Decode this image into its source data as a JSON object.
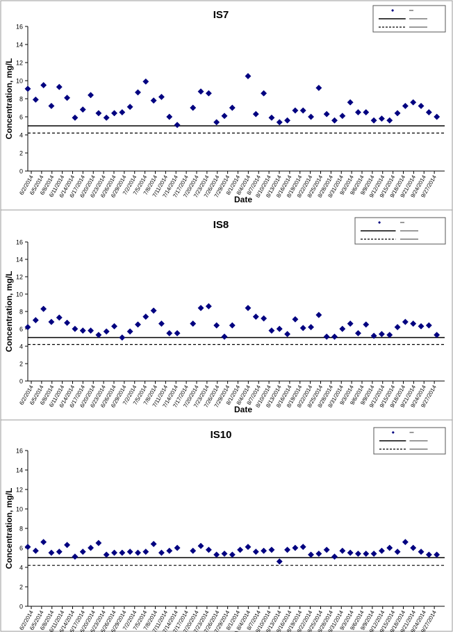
{
  "chart_data": [
    {
      "type": "scatter",
      "title": "IS7",
      "xlabel": "Date",
      "ylabel": "Concentration, mg/L",
      "ylim": [
        0,
        16
      ],
      "yticks": [
        0,
        2,
        4,
        6,
        8,
        10,
        12,
        14,
        16
      ],
      "grid": false,
      "legend": "top-right",
      "legend_entries": [
        "",
        "",
        ""
      ],
      "x_tick_labels": [
        "6/2/2014",
        "6/5/2014",
        "6/8/2014",
        "6/11/2014",
        "6/14/2014",
        "6/17/2014",
        "6/20/2014",
        "6/23/2014",
        "6/26/2014",
        "6/29/2014",
        "7/2/2014",
        "7/5/2014",
        "7/8/2014",
        "7/11/2014",
        "7/14/2014",
        "7/17/2014",
        "7/20/2014",
        "7/23/2014",
        "7/26/2014",
        "7/29/2014",
        "8/1/2014",
        "8/4/2014",
        "8/7/2014",
        "8/10/2014",
        "8/13/2014",
        "8/16/2014",
        "8/19/2014",
        "8/22/2014",
        "8/25/2014",
        "8/28/2014",
        "8/31/2014",
        "9/3/2014",
        "9/6/2014",
        "9/9/2014",
        "9/12/2014",
        "9/15/2014",
        "9/18/2014",
        "9/21/2014",
        "9/24/2014",
        "9/27/2014"
      ],
      "reference_lines": [
        5,
        4.2
      ],
      "series": [
        {
          "marker": "diamond",
          "color": "#000080",
          "points": [
            [
              0,
              9.1
            ],
            [
              1,
              7.9
            ],
            [
              2,
              9.5
            ],
            [
              3,
              7.2
            ],
            [
              4,
              9.3
            ],
            [
              5,
              8.1
            ],
            [
              6,
              5.9
            ],
            [
              7,
              6.8
            ],
            [
              8,
              8.4
            ],
            [
              9,
              6.4
            ],
            [
              10,
              5.9
            ],
            [
              11,
              6.4
            ],
            [
              12,
              6.5
            ],
            [
              13,
              7.1
            ],
            [
              14,
              8.7
            ],
            [
              15,
              9.9
            ],
            [
              16,
              7.8
            ],
            [
              17,
              8.2
            ],
            [
              18,
              6.0
            ],
            [
              19,
              5.1
            ],
            [
              21,
              7.0
            ],
            [
              22,
              8.8
            ],
            [
              23,
              8.6
            ],
            [
              24,
              5.4
            ],
            [
              25,
              6.1
            ],
            [
              26,
              7.0
            ],
            [
              28,
              10.5
            ],
            [
              29,
              6.3
            ],
            [
              30,
              8.6
            ],
            [
              31,
              5.9
            ],
            [
              32,
              5.4
            ],
            [
              33,
              5.6
            ],
            [
              34,
              6.7
            ],
            [
              35,
              6.7
            ],
            [
              36,
              6.0
            ],
            [
              37,
              9.2
            ],
            [
              38,
              6.3
            ],
            [
              39,
              5.6
            ],
            [
              40,
              6.1
            ],
            [
              41,
              7.6
            ],
            [
              42,
              6.5
            ],
            [
              43,
              6.5
            ],
            [
              44,
              5.6
            ],
            [
              45,
              5.8
            ],
            [
              46,
              5.6
            ],
            [
              47,
              6.4
            ],
            [
              48,
              7.2
            ],
            [
              49,
              7.6
            ],
            [
              50,
              7.2
            ],
            [
              51,
              6.5
            ],
            [
              52,
              6.0
            ]
          ]
        }
      ]
    },
    {
      "type": "scatter",
      "title": "IS8",
      "xlabel": "Date",
      "ylabel": "Concentration, mg/L",
      "ylim": [
        0,
        16
      ],
      "yticks": [
        0,
        2,
        4,
        6,
        8,
        10,
        12,
        14,
        16
      ],
      "grid": false,
      "legend": "top-right",
      "legend_entries": [
        "",
        "",
        ""
      ],
      "x_tick_labels": [
        "6/2/2014",
        "6/5/2014",
        "6/8/2014",
        "6/11/2014",
        "6/14/2014",
        "6/17/2014",
        "6/20/2014",
        "6/23/2014",
        "6/26/2014",
        "6/29/2014",
        "7/2/2014",
        "7/5/2014",
        "7/8/2014",
        "7/11/2014",
        "7/14/2014",
        "7/17/2014",
        "7/20/2014",
        "7/23/2014",
        "7/26/2014",
        "7/29/2014",
        "8/1/2014",
        "8/4/2014",
        "8/7/2014",
        "8/10/2014",
        "8/13/2014",
        "8/16/2014",
        "8/19/2014",
        "8/22/2014",
        "8/25/2014",
        "8/28/2014",
        "8/31/2014",
        "9/3/2014",
        "9/6/2014",
        "9/9/2014",
        "9/12/2014",
        "9/15/2014",
        "9/18/2014",
        "9/21/2014",
        "9/24/2014",
        "9/27/2014"
      ],
      "reference_lines": [
        5,
        4.2
      ],
      "series": [
        {
          "marker": "diamond",
          "color": "#000080",
          "points": [
            [
              0,
              6.2
            ],
            [
              1,
              7.0
            ],
            [
              2,
              8.3
            ],
            [
              3,
              6.8
            ],
            [
              4,
              7.3
            ],
            [
              5,
              6.7
            ],
            [
              6,
              6.0
            ],
            [
              7,
              5.8
            ],
            [
              8,
              5.8
            ],
            [
              9,
              5.3
            ],
            [
              10,
              5.7
            ],
            [
              11,
              6.3
            ],
            [
              12,
              5.0
            ],
            [
              13,
              5.7
            ],
            [
              14,
              6.5
            ],
            [
              15,
              7.4
            ],
            [
              16,
              8.1
            ],
            [
              17,
              6.6
            ],
            [
              18,
              5.5
            ],
            [
              19,
              5.5
            ],
            [
              21,
              6.6
            ],
            [
              22,
              8.4
            ],
            [
              23,
              8.6
            ],
            [
              24,
              6.4
            ],
            [
              25,
              5.1
            ],
            [
              26,
              6.4
            ],
            [
              28,
              8.4
            ],
            [
              29,
              7.4
            ],
            [
              30,
              7.2
            ],
            [
              31,
              5.8
            ],
            [
              32,
              6.0
            ],
            [
              33,
              5.4
            ],
            [
              34,
              7.1
            ],
            [
              35,
              6.1
            ],
            [
              36,
              6.2
            ],
            [
              37,
              7.6
            ],
            [
              38,
              5.1
            ],
            [
              39,
              5.1
            ],
            [
              40,
              6.0
            ],
            [
              41,
              6.6
            ],
            [
              42,
              5.5
            ],
            [
              43,
              6.5
            ],
            [
              44,
              5.2
            ],
            [
              45,
              5.4
            ],
            [
              46,
              5.3
            ],
            [
              47,
              6.2
            ],
            [
              48,
              6.8
            ],
            [
              49,
              6.6
            ],
            [
              50,
              6.3
            ],
            [
              51,
              6.4
            ],
            [
              52,
              5.3
            ]
          ]
        }
      ]
    },
    {
      "type": "scatter",
      "title": "IS10",
      "xlabel": "Date",
      "ylabel": "Concentration, mg/L",
      "ylim": [
        0,
        16
      ],
      "yticks": [
        0,
        2,
        4,
        6,
        8,
        10,
        12,
        14,
        16
      ],
      "grid": false,
      "legend": "top-right",
      "legend_entries": [
        "",
        "",
        ""
      ],
      "x_tick_labels": [
        "6/2/2014",
        "6/5/2014",
        "6/8/2014",
        "6/11/2014",
        "6/14/2014",
        "6/17/2014",
        "6/20/2014",
        "6/23/2014",
        "6/26/2014",
        "6/29/2014",
        "7/2/2014",
        "7/5/2014",
        "7/8/2014",
        "7/11/2014",
        "7/14/2014",
        "7/17/2014",
        "7/20/2014",
        "7/23/2014",
        "7/26/2014",
        "7/29/2014",
        "8/1/2014",
        "8/4/2014",
        "8/7/2014",
        "8/10/2014",
        "8/13/2014",
        "8/16/2014",
        "8/19/2014",
        "8/22/2014",
        "8/25/2014",
        "8/28/2014",
        "8/31/2014",
        "9/3/2014",
        "9/6/2014",
        "9/9/2014",
        "9/12/2014",
        "9/15/2014",
        "9/18/2014",
        "9/21/2014",
        "9/24/2014",
        "9/27/2014"
      ],
      "reference_lines": [
        5,
        4.2
      ],
      "series": [
        {
          "marker": "diamond",
          "color": "#000080",
          "points": [
            [
              0,
              6.1
            ],
            [
              1,
              5.7
            ],
            [
              2,
              6.6
            ],
            [
              3,
              5.5
            ],
            [
              4,
              5.6
            ],
            [
              5,
              6.3
            ],
            [
              6,
              5.1
            ],
            [
              7,
              5.6
            ],
            [
              8,
              6.0
            ],
            [
              9,
              6.5
            ],
            [
              10,
              5.3
            ],
            [
              11,
              5.5
            ],
            [
              12,
              5.5
            ],
            [
              13,
              5.6
            ],
            [
              14,
              5.5
            ],
            [
              15,
              5.6
            ],
            [
              16,
              6.4
            ],
            [
              17,
              5.5
            ],
            [
              18,
              5.7
            ],
            [
              19,
              6.0
            ],
            [
              21,
              5.7
            ],
            [
              22,
              6.2
            ],
            [
              23,
              5.8
            ],
            [
              24,
              5.3
            ],
            [
              25,
              5.4
            ],
            [
              26,
              5.3
            ],
            [
              27,
              5.8
            ],
            [
              28,
              6.1
            ],
            [
              29,
              5.6
            ],
            [
              30,
              5.7
            ],
            [
              31,
              5.8
            ],
            [
              32,
              4.6
            ],
            [
              33,
              5.8
            ],
            [
              34,
              6.0
            ],
            [
              35,
              6.1
            ],
            [
              36,
              5.3
            ],
            [
              37,
              5.4
            ],
            [
              38,
              5.8
            ],
            [
              39,
              5.1
            ],
            [
              40,
              5.7
            ],
            [
              41,
              5.5
            ],
            [
              42,
              5.4
            ],
            [
              43,
              5.4
            ],
            [
              44,
              5.4
            ],
            [
              45,
              5.7
            ],
            [
              46,
              6.0
            ],
            [
              47,
              5.6
            ],
            [
              48,
              6.6
            ],
            [
              49,
              6.0
            ],
            [
              50,
              5.6
            ],
            [
              51,
              5.3
            ],
            [
              52,
              5.3
            ]
          ]
        }
      ]
    }
  ]
}
